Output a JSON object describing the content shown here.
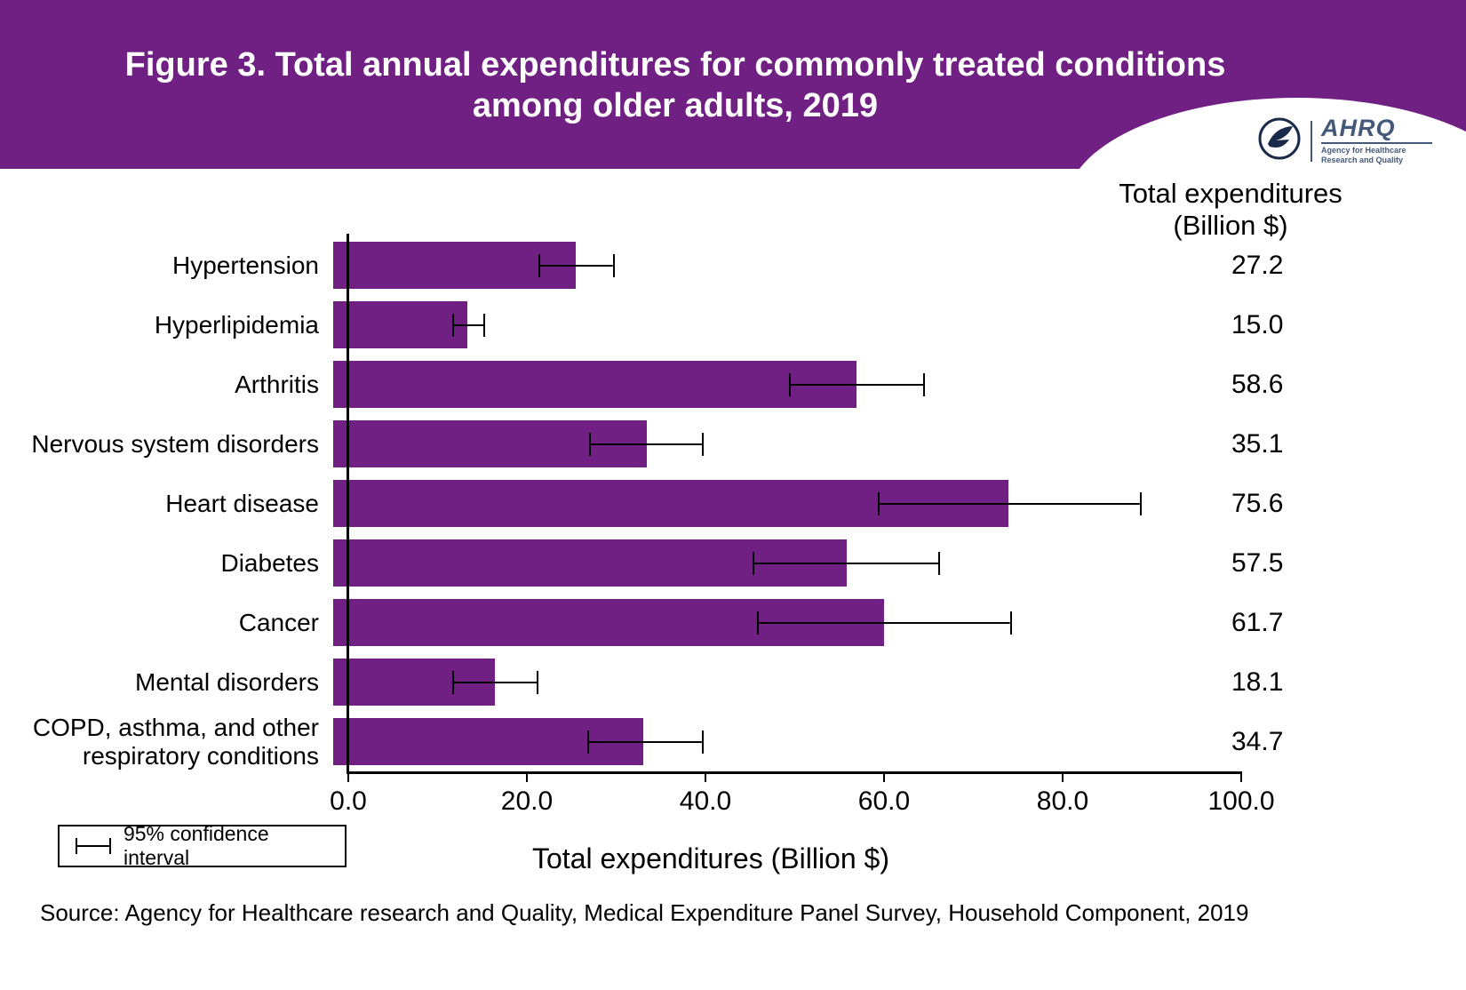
{
  "header": {
    "title_line1": "Figure 3. Total annual expenditures for commonly treated conditions",
    "title_line2": "among older adults, 2019",
    "band_color": "#702082",
    "logo": {
      "org": "AHRQ",
      "tagline": "Agency for Healthcare Research and Quality"
    }
  },
  "chart_data": {
    "type": "bar",
    "orientation": "horizontal",
    "title": "Figure 3. Total annual expenditures for commonly treated conditions among older adults, 2019",
    "xlabel": "Total expenditures (Billion $)",
    "xlim": [
      0,
      100
    ],
    "xticks": [
      "0.0",
      "20.0",
      "40.0",
      "60.0",
      "80.0",
      "100.0"
    ],
    "grid": false,
    "bar_color": "#702082",
    "value_column_header": {
      "line1": "Total expenditures",
      "line2": "(Billion $)"
    },
    "categories": [
      "Hypertension",
      "Hyperlipidemia",
      "Arthritis",
      "Nervous system disorders",
      "Heart disease",
      "Diabetes",
      "Cancer",
      "Mental disorders",
      "COPD, asthma, and other respiratory conditions"
    ],
    "values": [
      27.2,
      15.0,
      58.6,
      35.1,
      75.6,
      57.5,
      61.7,
      18.1,
      34.7
    ],
    "value_labels": [
      "27.2",
      "15.0",
      "58.6",
      "35.1",
      "75.6",
      "57.5",
      "61.7",
      "18.1",
      "34.7"
    ],
    "ci_low": [
      23.0,
      13.3,
      51.0,
      28.7,
      61.0,
      47.0,
      47.5,
      13.3,
      28.5
    ],
    "ci_high": [
      31.5,
      17.0,
      66.3,
      41.5,
      90.5,
      68.0,
      76.0,
      23.0,
      41.5
    ]
  },
  "legend": {
    "label": "95% confidence interval"
  },
  "footer": {
    "source": "Source: Agency for Healthcare research and Quality, Medical Expenditure Panel Survey, Household Component, 2019"
  }
}
